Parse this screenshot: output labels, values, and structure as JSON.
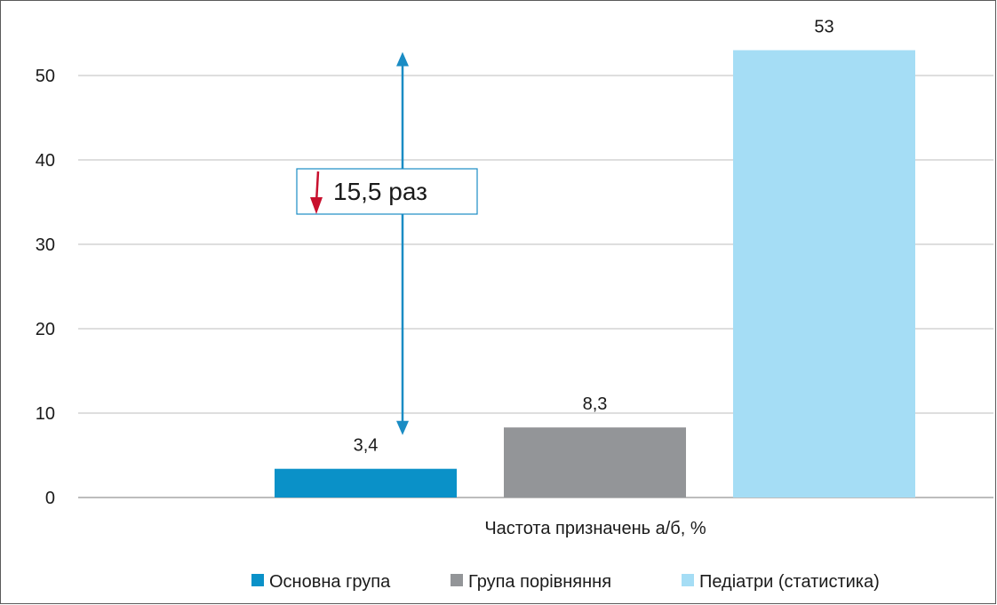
{
  "chart_data": {
    "type": "bar",
    "categories": [
      "Частота призначень а/б, %"
    ],
    "series": [
      {
        "name": "Основна група",
        "values": [
          3.4
        ],
        "label": "3,4",
        "color": "#0a91c8"
      },
      {
        "name": "Група порівняння",
        "values": [
          8.3
        ],
        "label": "8,3",
        "color": "#939598"
      },
      {
        "name": "Педіатри (статистика)",
        "values": [
          53
        ],
        "label": "53",
        "color": "#a5ddf5"
      }
    ],
    "xlabel": "Частота призначень а/б, %",
    "ylim": [
      0,
      55
    ],
    "yticks": [
      0,
      10,
      20,
      30,
      40,
      50
    ],
    "grid": true,
    "legend_position": "bottom",
    "annotation": {
      "text": "15,5 раз",
      "arrow_color": "#1a8cc4",
      "down_arrow_color": "#c8102e",
      "from_value": 3.4,
      "to_value": 53
    }
  }
}
